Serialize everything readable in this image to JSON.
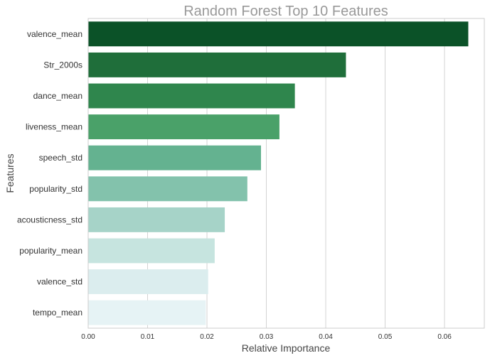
{
  "chart_data": {
    "type": "bar",
    "orientation": "horizontal",
    "title": "Random Forest Top 10 Features",
    "xlabel": "Relative Importance",
    "ylabel": "Features",
    "categories": [
      "valence_mean",
      "Str_2000s",
      "dance_mean",
      "liveness_mean",
      "speech_std",
      "popularity_std",
      "acousticness_std",
      "popularity_mean",
      "valence_std",
      "tempo_mean"
    ],
    "values": [
      0.064,
      0.0434,
      0.0348,
      0.0322,
      0.0291,
      0.0268,
      0.023,
      0.0213,
      0.0202,
      0.0198
    ],
    "xlim": [
      0,
      0.0667
    ],
    "xticks": [
      "0.00",
      "0.01",
      "0.02",
      "0.03",
      "0.04",
      "0.05",
      "0.06"
    ],
    "grid": true,
    "colors": [
      "#0b5228",
      "#1f6e3a",
      "#2f864d",
      "#4aa169",
      "#64b290",
      "#83c2ac",
      "#a6d3c8",
      "#c6e4df",
      "#dbedee",
      "#e6f3f5"
    ]
  }
}
